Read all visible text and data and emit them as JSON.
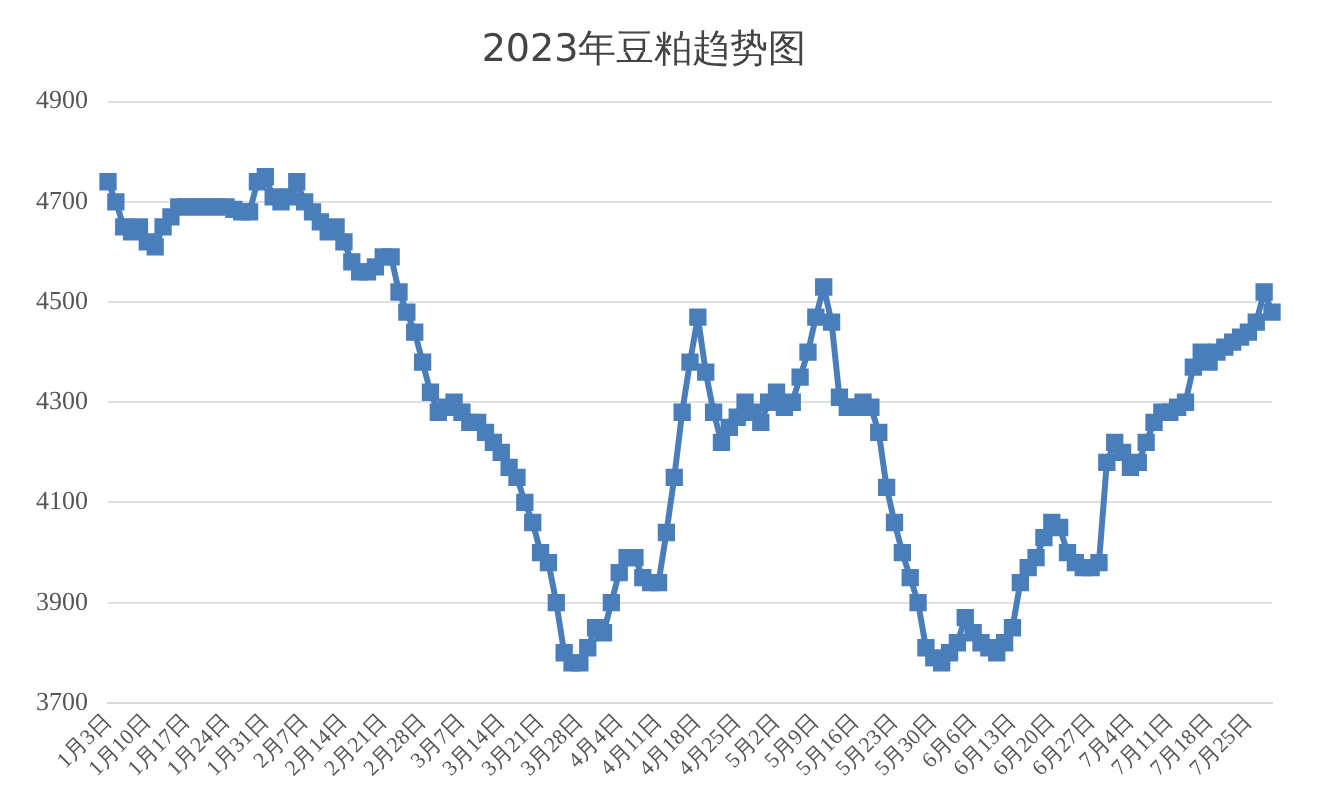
{
  "chart_data": {
    "type": "line",
    "title": "2023年豆粕趋势图",
    "categories": [
      "1月3日",
      null,
      null,
      null,
      null,
      "1月10日",
      null,
      null,
      null,
      null,
      "1月17日",
      null,
      null,
      null,
      null,
      "1月24日",
      null,
      null,
      null,
      null,
      "1月31日",
      null,
      null,
      null,
      null,
      "2月7日",
      null,
      null,
      null,
      null,
      "2月14日",
      null,
      null,
      null,
      null,
      "2月21日",
      null,
      null,
      null,
      null,
      "2月28日",
      null,
      null,
      null,
      null,
      "3月7日",
      null,
      null,
      null,
      null,
      "3月14日",
      null,
      null,
      null,
      null,
      "3月21日",
      null,
      null,
      null,
      null,
      "3月28日",
      null,
      null,
      null,
      null,
      "4月4日",
      null,
      null,
      null,
      null,
      "4月11日",
      null,
      null,
      null,
      null,
      "4月18日",
      null,
      null,
      null,
      null,
      "4月25日",
      null,
      null,
      null,
      null,
      "5月2日",
      null,
      null,
      null,
      null,
      "5月9日",
      null,
      null,
      null,
      null,
      "5月16日",
      null,
      null,
      null,
      null,
      "5月23日",
      null,
      null,
      null,
      null,
      "5月30日",
      null,
      null,
      null,
      null,
      "6月6日",
      null,
      null,
      null,
      null,
      "6月13日",
      null,
      null,
      null,
      null,
      "6月20日",
      null,
      null,
      null,
      null,
      "6月27日",
      null,
      null,
      null,
      null,
      "7月4日",
      null,
      null,
      null,
      null,
      "7月11日",
      null,
      null,
      null,
      null,
      "7月18日",
      null,
      null,
      null,
      null,
      "7月25日",
      null,
      null,
      null
    ],
    "series": [
      {
        "color": "#4a7ebb",
        "values": [
          4740,
          4700,
          4650,
          4640,
          4650,
          4620,
          4610,
          4650,
          4670,
          4690,
          4690,
          4690,
          4690,
          4690,
          4690,
          4690,
          4685,
          4680,
          4680,
          4740,
          4750,
          4710,
          4700,
          4710,
          4740,
          4700,
          4680,
          4660,
          4640,
          4650,
          4620,
          4580,
          4560,
          4560,
          4570,
          4590,
          4590,
          4520,
          4480,
          4440,
          4380,
          4320,
          4280,
          4290,
          4300,
          4280,
          4260,
          4260,
          4240,
          4220,
          4200,
          4170,
          4150,
          4100,
          4060,
          4000,
          3980,
          3900,
          3800,
          3780,
          3780,
          3810,
          3850,
          3840,
          3900,
          3960,
          3990,
          3990,
          3950,
          3940,
          3940,
          4040,
          4150,
          4280,
          4380,
          4470,
          4360,
          4280,
          4220,
          4250,
          4270,
          4300,
          4280,
          4260,
          4300,
          4320,
          4290,
          4300,
          4350,
          4400,
          4470,
          4530,
          4460,
          4310,
          4290,
          4290,
          4300,
          4290,
          4240,
          4130,
          4060,
          4000,
          3950,
          3900,
          3810,
          3790,
          3780,
          3800,
          3820,
          3870,
          3840,
          3820,
          3810,
          3800,
          3820,
          3850,
          3940,
          3970,
          3990,
          4030,
          4060,
          4050,
          4000,
          3980,
          3970,
          3970,
          3980,
          4180,
          4220,
          4200,
          4170,
          4180,
          4220,
          4260,
          4280,
          4280,
          4290,
          4300,
          4370,
          4400,
          4380,
          4400,
          4410,
          4420,
          4430,
          4440,
          4460,
          4520,
          4480
        ]
      }
    ],
    "ylim": [
      3700,
      4900
    ],
    "yticks": [
      3700,
      3900,
      4100,
      4300,
      4500,
      4700,
      4900
    ],
    "grid": "y",
    "marker": "square",
    "line_style": "solid"
  }
}
